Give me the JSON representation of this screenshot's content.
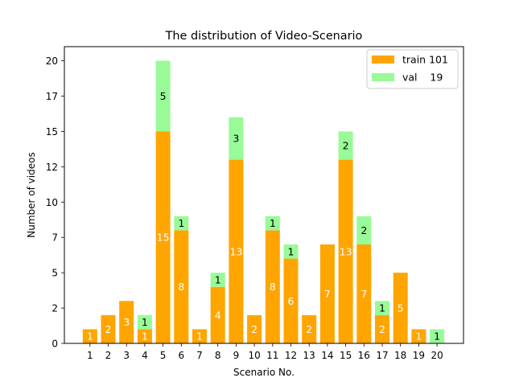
{
  "chart_data": {
    "type": "bar",
    "stacked": true,
    "title": "The distribution of Video-Scenario",
    "xlabel": "Scenario No.",
    "ylabel": "Number of videos",
    "categories": [
      "1",
      "2",
      "3",
      "4",
      "5",
      "6",
      "7",
      "8",
      "9",
      "10",
      "11",
      "12",
      "13",
      "14",
      "15",
      "16",
      "17",
      "18",
      "19",
      "20"
    ],
    "series": [
      {
        "name": "train",
        "legend_label": "train 101",
        "color": "#FFA500",
        "label_color": "#ffffff",
        "values": [
          1,
          2,
          3,
          1,
          15,
          8,
          1,
          4,
          13,
          2,
          8,
          6,
          2,
          7,
          13,
          7,
          2,
          5,
          1,
          0
        ],
        "shown_labels": [
          "1",
          "2",
          "3",
          "1",
          "15",
          "8",
          "1",
          "4",
          "13",
          "2",
          "8",
          "6",
          "2",
          "7",
          "13",
          "7",
          "2",
          "5",
          "1",
          ""
        ]
      },
      {
        "name": "val",
        "legend_label": "val    19",
        "color": "#98FB98",
        "label_color": "#000000",
        "values": [
          0,
          0,
          0,
          1,
          5,
          1,
          0,
          1,
          3,
          0,
          1,
          1,
          0,
          0,
          2,
          2,
          1,
          0,
          0,
          1
        ],
        "shown_labels": [
          "",
          "",
          "",
          "1",
          "5",
          "1",
          "",
          "1",
          "3",
          "",
          "1",
          "1",
          "",
          "",
          "2",
          "2",
          "1",
          "",
          "",
          "1"
        ]
      }
    ],
    "yticks": [
      "0",
      "2",
      "5",
      "7",
      "10",
      "12",
      "15",
      "17",
      "20"
    ],
    "ylim": [
      0,
      21
    ],
    "legend": "top-right",
    "grid": false
  }
}
